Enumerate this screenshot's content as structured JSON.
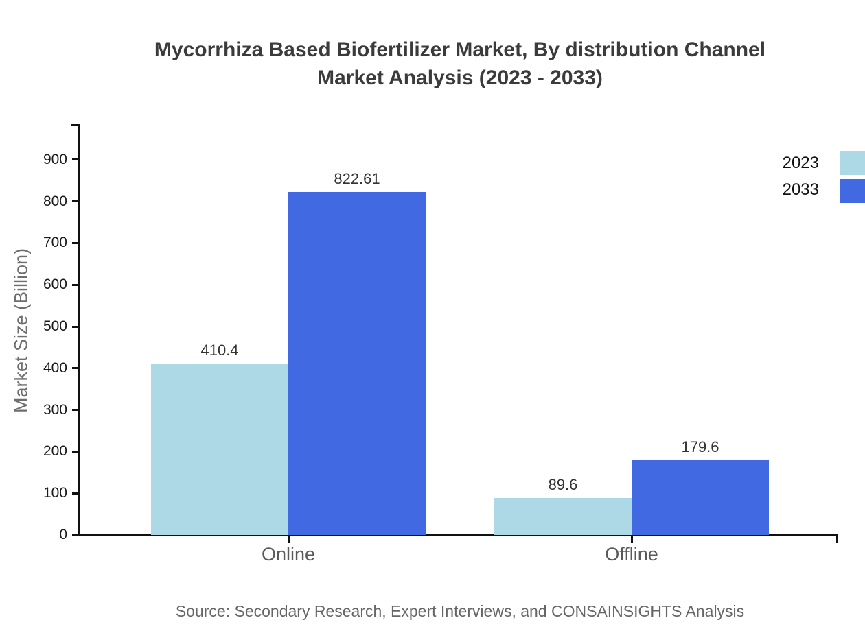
{
  "title": {
    "line1": "Mycorrhiza Based Biofertilizer Market, By distribution Channel",
    "line2": "Market Analysis (2023 - 2033)"
  },
  "chart_data": {
    "type": "bar",
    "categories": [
      "Online",
      "Offline"
    ],
    "series": [
      {
        "name": "2023",
        "color": "#ADD8E6",
        "values": [
          410.4,
          89.6
        ]
      },
      {
        "name": "2033",
        "color": "#4169E1",
        "values": [
          822.61,
          179.6
        ]
      }
    ],
    "value_labels": [
      [
        "410.4",
        "89.6"
      ],
      [
        "822.61",
        "179.6"
      ]
    ],
    "ylabel": "Market Size (Billion)",
    "xlabel": "",
    "ylim": [
      0,
      983
    ],
    "yticks": [
      0,
      100,
      200,
      300,
      400,
      500,
      600,
      700,
      800,
      900
    ],
    "grid": false,
    "legend_position": "top-right"
  },
  "source": "Source: Secondary Research, Expert Interviews, and CONSAINSIGHTS Analysis",
  "colors": {
    "series_2023": "#ADD8E6",
    "series_2033": "#4169E1",
    "axis": "#111111",
    "title_text": "#3b3b3b",
    "background": "#ffffff"
  }
}
